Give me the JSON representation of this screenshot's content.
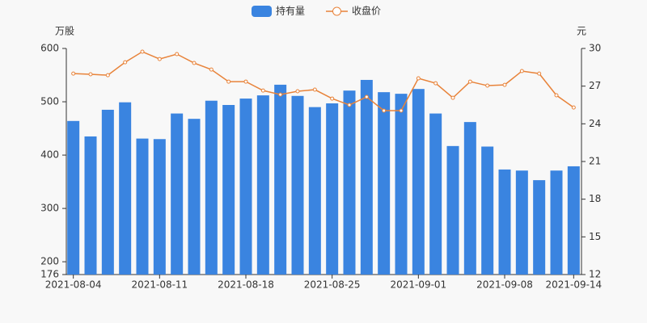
{
  "chart_data": {
    "type": "bar-line",
    "y_label": "万股",
    "y2_label": "元",
    "categories": [
      "2021-08-04",
      null,
      null,
      null,
      null,
      "2021-08-11",
      null,
      null,
      null,
      null,
      "2021-08-18",
      null,
      null,
      null,
      null,
      "2021-08-25",
      null,
      null,
      null,
      null,
      "2021-09-01",
      null,
      null,
      null,
      null,
      "2021-09-08",
      null,
      null,
      null,
      "2021-09-14"
    ],
    "series": [
      {
        "name": "持有量",
        "type": "bar",
        "color": "#3a84e0",
        "values": [
          464,
          435,
          485,
          499,
          431,
          430,
          478,
          468,
          502,
          494,
          506,
          512,
          532,
          511,
          490,
          497,
          521,
          541,
          518,
          515,
          524,
          478,
          417,
          462,
          416,
          373,
          371,
          353,
          371,
          379
        ]
      },
      {
        "name": "收盘价",
        "type": "line",
        "axis": "y2",
        "color": "#e8833a",
        "values": [
          28.0,
          27.94,
          27.87,
          28.9,
          29.74,
          29.16,
          29.55,
          28.84,
          28.32,
          27.36,
          27.36,
          26.65,
          26.33,
          26.59,
          26.72,
          26.01,
          25.5,
          26.14,
          25.05,
          25.05,
          27.62,
          27.23,
          26.07,
          27.36,
          27.04,
          27.1,
          28.2,
          28.0,
          26.27,
          25.3
        ]
      }
    ],
    "ylim": [
      176,
      600
    ],
    "yticks": [
      176,
      200,
      300,
      400,
      500,
      600
    ],
    "y2lim": [
      12,
      30
    ],
    "y2ticks": [
      12,
      15,
      18,
      21,
      24,
      27,
      30
    ],
    "legend": "top"
  }
}
